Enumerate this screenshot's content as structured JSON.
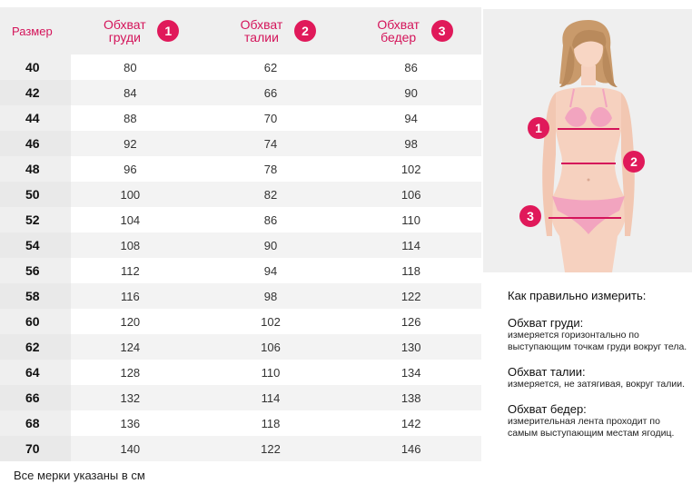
{
  "table": {
    "size_header": "Размер",
    "headers": [
      {
        "label": "Обхват груди",
        "number": "1"
      },
      {
        "label": "Обхват талии",
        "number": "2"
      },
      {
        "label": "Обхват бедер",
        "number": "3"
      }
    ],
    "rows": [
      {
        "size": "40",
        "chest": "80",
        "waist": "62",
        "hips": "86"
      },
      {
        "size": "42",
        "chest": "84",
        "waist": "66",
        "hips": "90"
      },
      {
        "size": "44",
        "chest": "88",
        "waist": "70",
        "hips": "94"
      },
      {
        "size": "46",
        "chest": "92",
        "waist": "74",
        "hips": "98"
      },
      {
        "size": "48",
        "chest": "96",
        "waist": "78",
        "hips": "102"
      },
      {
        "size": "50",
        "chest": "100",
        "waist": "82",
        "hips": "106"
      },
      {
        "size": "52",
        "chest": "104",
        "waist": "86",
        "hips": "110"
      },
      {
        "size": "54",
        "chest": "108",
        "waist": "90",
        "hips": "114"
      },
      {
        "size": "56",
        "chest": "112",
        "waist": "94",
        "hips": "118"
      },
      {
        "size": "58",
        "chest": "116",
        "waist": "98",
        "hips": "122"
      },
      {
        "size": "60",
        "chest": "120",
        "waist": "102",
        "hips": "126"
      },
      {
        "size": "62",
        "chest": "124",
        "waist": "106",
        "hips": "130"
      },
      {
        "size": "64",
        "chest": "128",
        "waist": "110",
        "hips": "134"
      },
      {
        "size": "66",
        "chest": "132",
        "waist": "114",
        "hips": "138"
      },
      {
        "size": "68",
        "chest": "136",
        "waist": "118",
        "hips": "142"
      },
      {
        "size": "70",
        "chest": "140",
        "waist": "122",
        "hips": "146"
      }
    ]
  },
  "note": "Все мерки указаны в см",
  "figure": {
    "markers": [
      "1",
      "2",
      "3"
    ]
  },
  "instructions": {
    "title": "Как правильно измерить:",
    "items": [
      {
        "title": "Обхват груди:",
        "desc": "измеряется горизонтально по выступающим точкам груди вокруг тела."
      },
      {
        "title": "Обхват талии:",
        "desc": "измеряется, не затягивая, вокруг талии."
      },
      {
        "title": "Обхват бедер:",
        "desc": "измерительная лента проходит по самым выступающим местам ягодиц."
      }
    ]
  },
  "colors": {
    "accent": "#e0195a",
    "header_text": "#d4145a",
    "header_bg": "#efefef",
    "row_alt_bg": "#f3f3f3"
  }
}
